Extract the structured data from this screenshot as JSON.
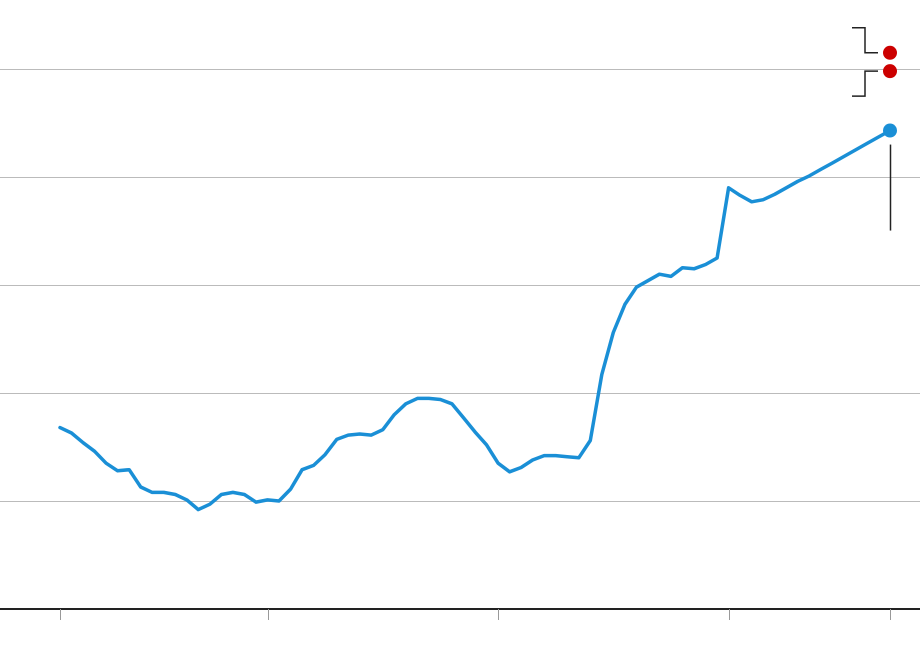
{
  "chart_data": {
    "type": "line",
    "title": "",
    "xlabel": "",
    "ylabel": "",
    "grid": true,
    "xlim": [
      0,
      72
    ],
    "ylim": [
      0,
      5
    ],
    "x_ticks": [
      0,
      18,
      38,
      58,
      72
    ],
    "y_gridlines": [
      1,
      2,
      3,
      4,
      5
    ],
    "colors": {
      "series": "#1a8fd6",
      "highlight": "#cc0000",
      "grid": "#bbbbbb",
      "axis": "#222222",
      "bracket": "#222222"
    },
    "series": [
      {
        "values": [
          [
            0,
            1.68
          ],
          [
            1,
            1.63
          ],
          [
            2,
            1.54
          ],
          [
            3,
            1.46
          ],
          [
            4,
            1.35
          ],
          [
            5,
            1.28
          ],
          [
            6,
            1.29
          ],
          [
            7,
            1.13
          ],
          [
            8,
            1.08
          ],
          [
            9,
            1.08
          ],
          [
            10,
            1.06
          ],
          [
            11,
            1.01
          ],
          [
            12,
            0.92
          ],
          [
            13,
            0.97
          ],
          [
            14,
            1.06
          ],
          [
            15,
            1.08
          ],
          [
            16,
            1.06
          ],
          [
            17,
            0.99
          ],
          [
            18,
            1.01
          ],
          [
            19,
            1.0
          ],
          [
            20,
            1.11
          ],
          [
            21,
            1.29
          ],
          [
            22,
            1.33
          ],
          [
            23,
            1.43
          ],
          [
            24,
            1.57
          ],
          [
            25,
            1.61
          ],
          [
            26,
            1.62
          ],
          [
            27,
            1.61
          ],
          [
            28,
            1.66
          ],
          [
            29,
            1.8
          ],
          [
            30,
            1.9
          ],
          [
            31,
            1.95
          ],
          [
            32,
            1.95
          ],
          [
            33,
            1.94
          ],
          [
            34,
            1.9
          ],
          [
            35,
            1.77
          ],
          [
            36,
            1.64
          ],
          [
            37,
            1.52
          ],
          [
            38,
            1.35
          ],
          [
            39,
            1.27
          ],
          [
            40,
            1.31
          ],
          [
            41,
            1.38
          ],
          [
            42,
            1.42
          ],
          [
            43,
            1.42
          ],
          [
            44,
            1.41
          ],
          [
            45,
            1.4
          ],
          [
            46,
            1.56
          ],
          [
            47,
            2.17
          ],
          [
            48,
            2.56
          ],
          [
            49,
            2.82
          ],
          [
            50,
            2.98
          ],
          [
            51,
            3.04
          ],
          [
            52,
            3.1
          ],
          [
            53,
            3.08
          ],
          [
            54,
            3.16
          ],
          [
            55,
            3.15
          ],
          [
            56,
            3.19
          ],
          [
            57,
            3.25
          ],
          [
            58,
            3.9
          ],
          [
            59,
            3.83
          ],
          [
            60,
            3.77
          ],
          [
            61,
            3.79
          ],
          [
            62,
            3.84
          ],
          [
            63,
            3.9
          ],
          [
            64,
            3.96
          ],
          [
            65,
            4.01
          ],
          [
            66,
            4.07
          ],
          [
            67,
            4.13
          ],
          [
            68,
            4.19
          ],
          [
            69,
            4.25
          ],
          [
            70,
            4.31
          ],
          [
            71,
            4.37
          ],
          [
            72,
            4.43
          ]
        ]
      }
    ],
    "end_points": [
      {
        "x": 72,
        "y": 4.43,
        "color": "#1a8fd6"
      },
      {
        "x": 72,
        "y": 4.98,
        "color": "#cc0000"
      },
      {
        "x": 72,
        "y": 5.15,
        "color": "#cc0000"
      }
    ]
  }
}
